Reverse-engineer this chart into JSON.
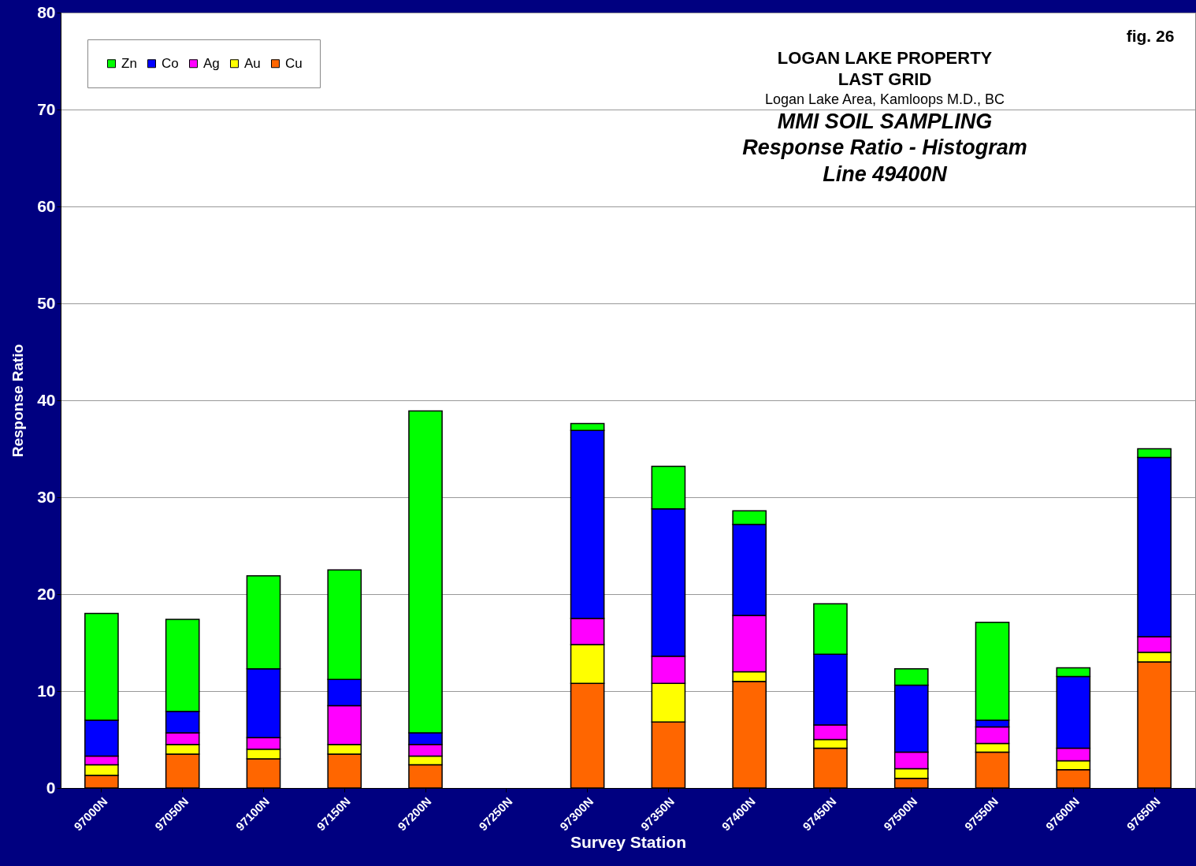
{
  "chart_data": {
    "type": "bar",
    "stacked": true,
    "xlabel": "Survey Station",
    "ylabel": "Response Ratio",
    "categories": [
      "97000N",
      "97050N",
      "97100N",
      "97150N",
      "97200N",
      "97250N",
      "97300N",
      "97350N",
      "97400N",
      "97450N",
      "97500N",
      "97550N",
      "97600N",
      "97650N"
    ],
    "series": [
      {
        "name": "Cu",
        "color": "#ff6600",
        "values": [
          1.3,
          3.5,
          3.0,
          3.5,
          2.4,
          0,
          10.8,
          6.8,
          11.0,
          4.1,
          1.0,
          3.7,
          1.9,
          13.0
        ]
      },
      {
        "name": "Au",
        "color": "#ffff00",
        "values": [
          1.1,
          1.0,
          1.0,
          1.0,
          0.9,
          0,
          4.0,
          4.0,
          1.0,
          0.9,
          1.0,
          0.9,
          0.9,
          1.0
        ]
      },
      {
        "name": "Ag",
        "color": "#ff00ff",
        "values": [
          0.9,
          1.2,
          1.2,
          4.0,
          1.2,
          0,
          2.7,
          2.8,
          5.8,
          1.5,
          1.7,
          1.7,
          1.3,
          1.6
        ]
      },
      {
        "name": "Co",
        "color": "#0000ff",
        "values": [
          3.7,
          2.2,
          7.1,
          2.7,
          1.2,
          0,
          19.4,
          15.2,
          9.4,
          7.3,
          6.9,
          0.7,
          7.4,
          18.5
        ]
      },
      {
        "name": "Zn",
        "color": "#00ff00",
        "values": [
          11.0,
          9.5,
          9.6,
          11.3,
          33.2,
          0,
          0.7,
          4.4,
          1.4,
          5.2,
          1.7,
          10.1,
          0.9,
          0.9
        ]
      }
    ],
    "ylim": [
      0,
      80
    ],
    "yticks": [
      0,
      10,
      20,
      30,
      40,
      50,
      60,
      70,
      80
    ],
    "grid": "y",
    "legend": "top left",
    "annotations": [
      "LOGAN LAKE PROPERTY",
      "LAST GRID",
      "Logan Lake Area, Kamloops M.D., BC",
      "MMI SOIL SAMPLING",
      "Response Ratio - Histogram",
      "Line 49400N",
      "fig. 26"
    ]
  }
}
